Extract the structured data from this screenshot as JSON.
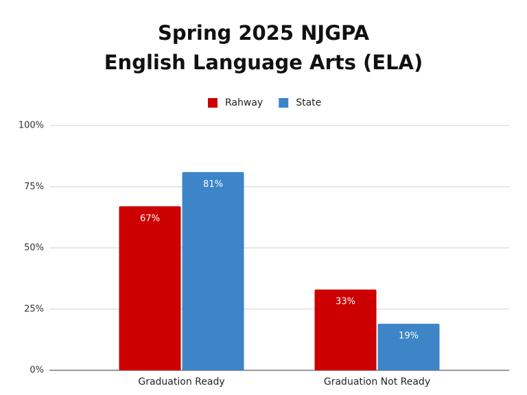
{
  "chart_data": {
    "type": "bar",
    "title": [
      "Spring 2025 NJGPA",
      "English Language Arts (ELA)"
    ],
    "categories": [
      "Graduation Ready",
      "Graduation Not Ready"
    ],
    "series": [
      {
        "name": "Rahway",
        "color": "#cc0000",
        "values": [
          67,
          33
        ],
        "value_labels": [
          "67%",
          "33%"
        ]
      },
      {
        "name": "State",
        "color": "#3d85c6",
        "values": [
          81,
          19
        ],
        "value_labels": [
          "81%",
          "19%"
        ]
      }
    ],
    "ylim": [
      0,
      100
    ],
    "yticks": [
      {
        "value": 0,
        "label": "0%"
      },
      {
        "value": 25,
        "label": "25%"
      },
      {
        "value": 50,
        "label": "50%"
      },
      {
        "value": 75,
        "label": "75%"
      },
      {
        "value": 100,
        "label": "100%"
      }
    ],
    "grid": true,
    "legend": "top"
  }
}
